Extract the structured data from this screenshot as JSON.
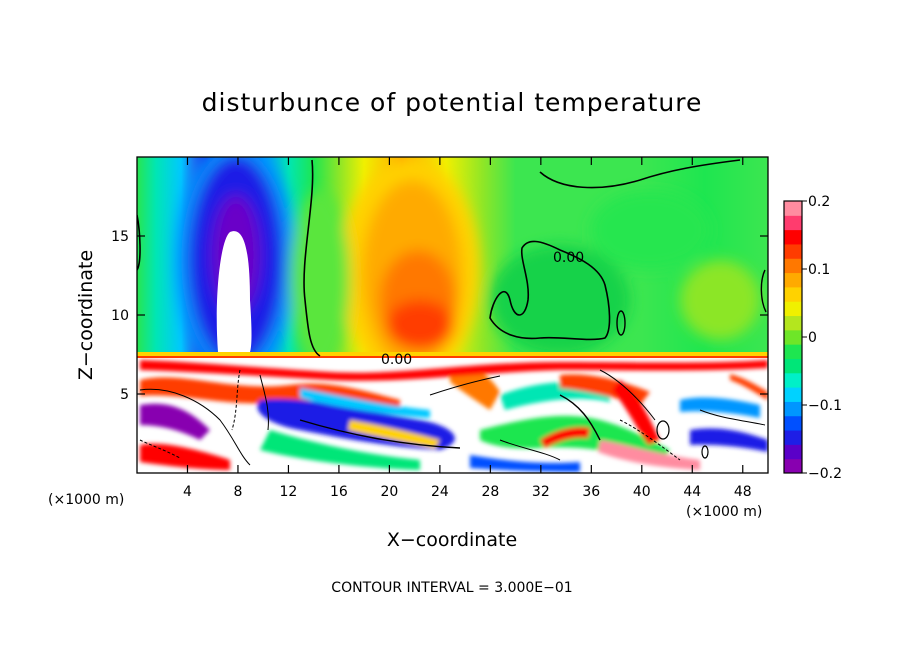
{
  "chart_data": {
    "type": "heatmap",
    "title": "disturbunce of potential temperature",
    "xlabel": "X−coordinate",
    "ylabel": "Z−coordinate",
    "x_unit": "(×1000 m)",
    "x_unit_right": "(×1000 m)",
    "footer": "CONTOUR INTERVAL = 3.000E−01",
    "xlim": [
      0,
      50
    ],
    "ylim": [
      0,
      20
    ],
    "xticks": [
      4,
      8,
      12,
      16,
      20,
      24,
      28,
      32,
      36,
      40,
      44,
      48
    ],
    "yticks": [
      5,
      10,
      15
    ],
    "colorbar": {
      "min": -0.2,
      "max": 0.2,
      "ticks": [
        0.2,
        0.1,
        0,
        -0.1,
        -0.2
      ],
      "tick_labels": [
        "0.2",
        "0.1",
        "0",
        "−0.1",
        "−0.2"
      ],
      "colors": [
        "#8800b0",
        "#5a00c8",
        "#1e1ee6",
        "#0050ff",
        "#0096ff",
        "#00d2ff",
        "#00f0c8",
        "#00e678",
        "#1ee650",
        "#6ee628",
        "#b4e61e",
        "#f0f000",
        "#ffd200",
        "#ffaa00",
        "#ff7800",
        "#ff3c00",
        "#ff0000",
        "#ff3c6e",
        "#ff8ca0"
      ]
    },
    "contour_labels": [
      "0.00",
      "0.00"
    ],
    "grid": false,
    "legend": "colorbar-right"
  }
}
